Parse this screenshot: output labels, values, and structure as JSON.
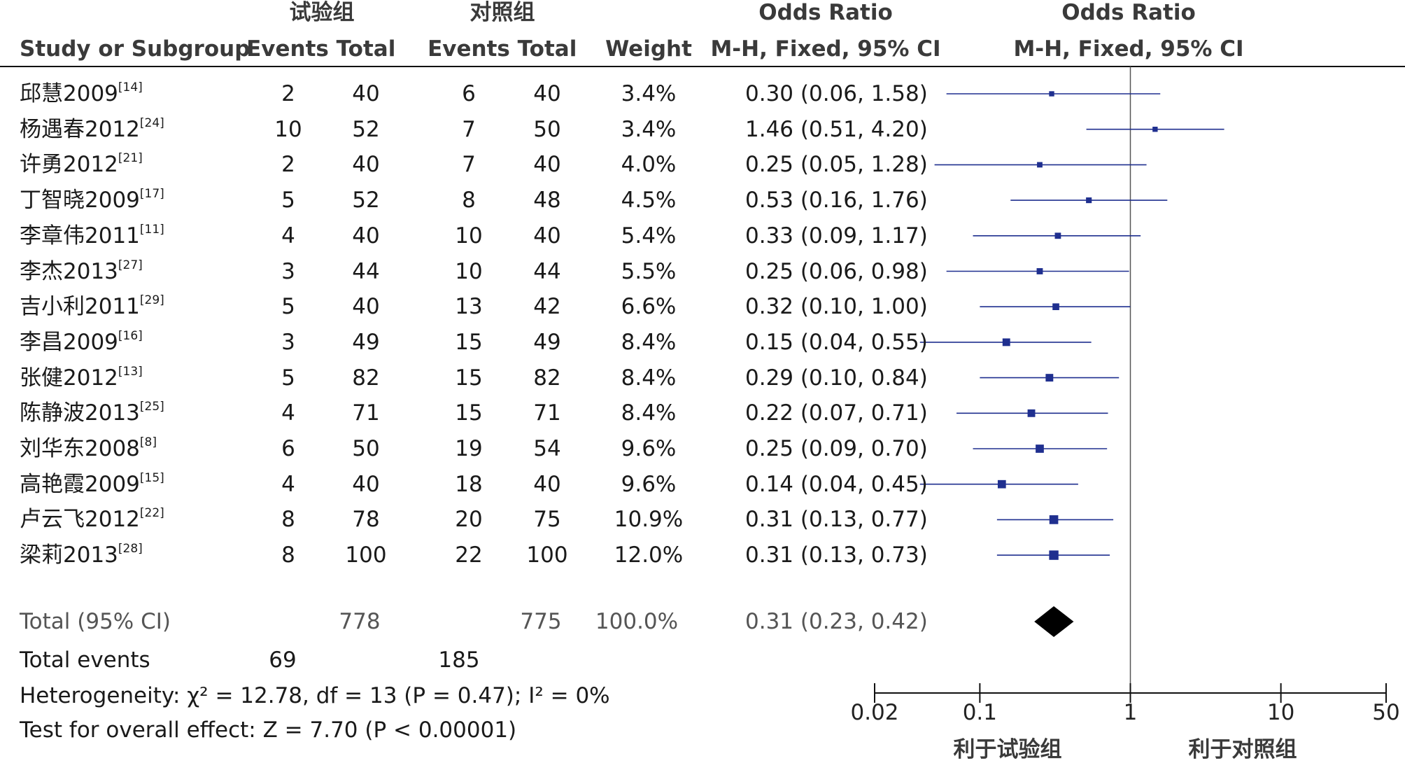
{
  "headers": {
    "group_exp": "试验组",
    "group_ctl": "对照组",
    "odds_ratio": "Odds Ratio",
    "odds_ratio_plot": "Odds Ratio",
    "study": "Study or Subgroup",
    "events": "Events",
    "total": "Total",
    "events2": "Events",
    "total2": "Total",
    "weight": "Weight",
    "method": "M-H, Fixed, 95% CI",
    "method_plot": "M-H, Fixed, 95% CI"
  },
  "studies": [
    {
      "name": "邱慧2009",
      "ref": "[14]",
      "e_events": "2",
      "e_total": "40",
      "c_events": "6",
      "c_total": "40",
      "weight": "3.4%",
      "ci_text": "0.30 (0.06, 1.58)"
    },
    {
      "name": "杨遇春2012",
      "ref": "[24]",
      "e_events": "10",
      "e_total": "52",
      "c_events": "7",
      "c_total": "50",
      "weight": "3.4%",
      "ci_text": "1.46 (0.51, 4.20)"
    },
    {
      "name": "许勇2012",
      "ref": "[21]",
      "e_events": "2",
      "e_total": "40",
      "c_events": "7",
      "c_total": "40",
      "weight": "4.0%",
      "ci_text": "0.25 (0.05, 1.28)"
    },
    {
      "name": "丁智晓2009",
      "ref": "[17]",
      "e_events": "5",
      "e_total": "52",
      "c_events": "8",
      "c_total": "48",
      "weight": "4.5%",
      "ci_text": "0.53 (0.16, 1.76)"
    },
    {
      "name": "李章伟2011",
      "ref": "[11]",
      "e_events": "4",
      "e_total": "40",
      "c_events": "10",
      "c_total": "40",
      "weight": "5.4%",
      "ci_text": "0.33 (0.09, 1.17)"
    },
    {
      "name": "李杰2013",
      "ref": "[27]",
      "e_events": "3",
      "e_total": "44",
      "c_events": "10",
      "c_total": "44",
      "weight": "5.5%",
      "ci_text": "0.25 (0.06, 0.98)"
    },
    {
      "name": "吉小利2011",
      "ref": "[29]",
      "e_events": "5",
      "e_total": "40",
      "c_events": "13",
      "c_total": "42",
      "weight": "6.6%",
      "ci_text": "0.32 (0.10, 1.00)"
    },
    {
      "name": "李昌2009",
      "ref": "[16]",
      "e_events": "3",
      "e_total": "49",
      "c_events": "15",
      "c_total": "49",
      "weight": "8.4%",
      "ci_text": "0.15 (0.04, 0.55)"
    },
    {
      "name": "张健2012",
      "ref": "[13]",
      "e_events": "5",
      "e_total": "82",
      "c_events": "15",
      "c_total": "82",
      "weight": "8.4%",
      "ci_text": "0.29 (0.10, 0.84)"
    },
    {
      "name": "陈静波2013",
      "ref": "[25]",
      "e_events": "4",
      "e_total": "71",
      "c_events": "15",
      "c_total": "71",
      "weight": "8.4%",
      "ci_text": "0.22 (0.07, 0.71)"
    },
    {
      "name": "刘华东2008",
      "ref": "[8]",
      "e_events": "6",
      "e_total": "50",
      "c_events": "19",
      "c_total": "54",
      "weight": "9.6%",
      "ci_text": "0.25 (0.09, 0.70)"
    },
    {
      "name": "高艳霞2009",
      "ref": "[15]",
      "e_events": "4",
      "e_total": "40",
      "c_events": "18",
      "c_total": "40",
      "weight": "9.6%",
      "ci_text": "0.14 (0.04, 0.45)"
    },
    {
      "name": "卢云飞2012",
      "ref": "[22]",
      "e_events": "8",
      "e_total": "78",
      "c_events": "20",
      "c_total": "75",
      "weight": "10.9%",
      "ci_text": "0.31 (0.13, 0.77)"
    },
    {
      "name": "梁莉2013",
      "ref": "[28]",
      "e_events": "8",
      "e_total": "100",
      "c_events": "22",
      "c_total": "100",
      "weight": "12.0%",
      "ci_text": "0.31 (0.13, 0.73)"
    }
  ],
  "total": {
    "label": "Total (95% CI)",
    "e_total": "778",
    "c_total": "775",
    "weight": "100.0%",
    "ci_text": "0.31 (0.23, 0.42)"
  },
  "total_events": {
    "label": "Total events",
    "e_events": "69",
    "c_events": "185"
  },
  "heterogeneity": "Heterogeneity: χ² = 12.78, df = 13 (P = 0.47); I² = 0%",
  "overall_effect": "Test for overall effect: Z = 7.70 (P < 0.00001)",
  "axis": {
    "tick_labels": [
      "0.02",
      "0.1",
      "1",
      "10",
      "50"
    ],
    "favours_left": "利于试验组",
    "favours_right": "利于对照组"
  },
  "colors": {
    "marker": "#1f2f8f",
    "line": "#1f2f8f",
    "diamond": "#000000"
  },
  "chart_data": {
    "type": "forest",
    "xscale": "log",
    "xlim": [
      0.02,
      50
    ],
    "xticks": [
      0.02,
      0.1,
      1,
      10,
      50
    ],
    "reference_line": 1,
    "series": [
      {
        "name": "邱慧2009",
        "or": 0.3,
        "lo": 0.06,
        "hi": 1.58,
        "weight": 3.4
      },
      {
        "name": "杨遇春2012",
        "or": 1.46,
        "lo": 0.51,
        "hi": 4.2,
        "weight": 3.4
      },
      {
        "name": "许勇2012",
        "or": 0.25,
        "lo": 0.05,
        "hi": 1.28,
        "weight": 4.0
      },
      {
        "name": "丁智晓2009",
        "or": 0.53,
        "lo": 0.16,
        "hi": 1.76,
        "weight": 4.5
      },
      {
        "name": "李章伟2011",
        "or": 0.33,
        "lo": 0.09,
        "hi": 1.17,
        "weight": 5.4
      },
      {
        "name": "李杰2013",
        "or": 0.25,
        "lo": 0.06,
        "hi": 0.98,
        "weight": 5.5
      },
      {
        "name": "吉小利2011",
        "or": 0.32,
        "lo": 0.1,
        "hi": 1.0,
        "weight": 6.6
      },
      {
        "name": "李昌2009",
        "or": 0.15,
        "lo": 0.04,
        "hi": 0.55,
        "weight": 8.4
      },
      {
        "name": "张健2012",
        "or": 0.29,
        "lo": 0.1,
        "hi": 0.84,
        "weight": 8.4
      },
      {
        "name": "陈静波2013",
        "or": 0.22,
        "lo": 0.07,
        "hi": 0.71,
        "weight": 8.4
      },
      {
        "name": "刘华东2008",
        "or": 0.25,
        "lo": 0.09,
        "hi": 0.7,
        "weight": 9.6
      },
      {
        "name": "高艳霞2009",
        "or": 0.14,
        "lo": 0.04,
        "hi": 0.45,
        "weight": 9.6
      },
      {
        "name": "卢云飞2012",
        "or": 0.31,
        "lo": 0.13,
        "hi": 0.77,
        "weight": 10.9
      },
      {
        "name": "梁莉2013",
        "or": 0.31,
        "lo": 0.13,
        "hi": 0.73,
        "weight": 12.0
      }
    ],
    "pooled": {
      "or": 0.31,
      "lo": 0.23,
      "hi": 0.42
    }
  }
}
